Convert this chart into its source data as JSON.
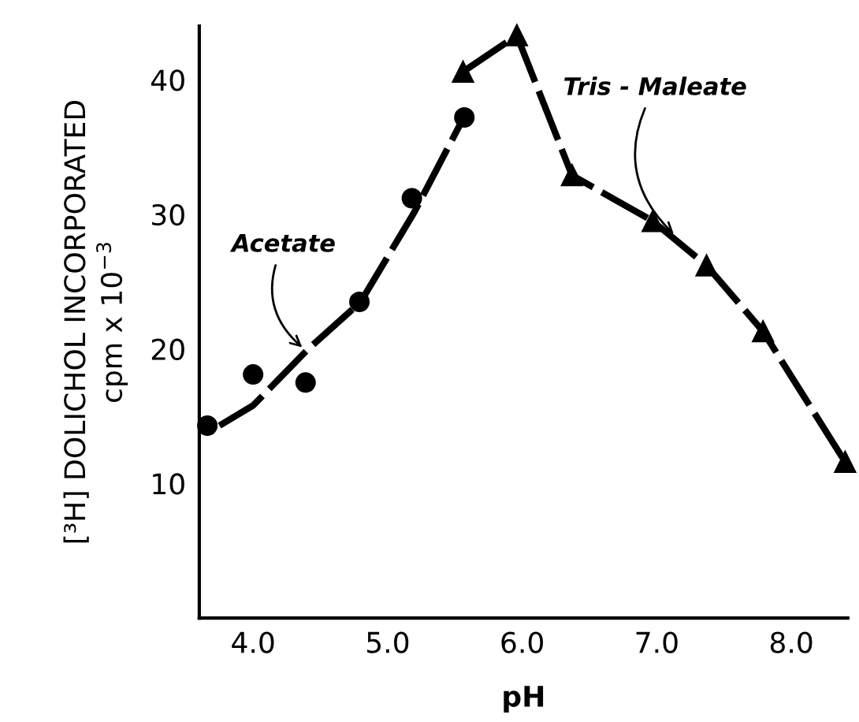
{
  "chart_data": {
    "type": "scatter",
    "xlabel": "pH",
    "ylabel": "[³H] DOLICHOL INCORPORATED\ncpm x 10$^{−3}$",
    "xlim": [
      3.6,
      8.42
    ],
    "ylim": [
      0,
      44
    ],
    "xticks": [
      {
        "value": 4,
        "label": "4.0"
      },
      {
        "value": 5,
        "label": "5.0"
      },
      {
        "value": 6,
        "label": "6.0"
      },
      {
        "value": 7,
        "label": "7.0"
      },
      {
        "value": 8,
        "label": "8.0"
      }
    ],
    "yticks": [
      10,
      20,
      30,
      40
    ],
    "grid": false,
    "legend": false,
    "series": [
      {
        "marker": "circle",
        "color": "#000000",
        "x": [
          3.66,
          4.0,
          4.39,
          4.79,
          5.18,
          5.57
        ],
        "values": [
          14.3,
          18.1,
          17.5,
          23.5,
          31.2,
          37.2
        ]
      },
      {
        "type": "line",
        "marker": "none",
        "line_style": "dashed",
        "color": "#000000",
        "x": [
          3.75,
          4.0,
          4.4,
          4.8,
          5.2,
          5.56
        ],
        "values": [
          14.3,
          15.8,
          19.9,
          23.5,
          30.2,
          37.1
        ]
      },
      {
        "type": "line",
        "marker": "triangle",
        "line_style": "dashed",
        "color": "#000000",
        "x": [
          5.56,
          5.96,
          6.37,
          6.97,
          7.37,
          7.79,
          8.4
        ],
        "values": [
          40.6,
          43.3,
          32.9,
          29.5,
          26.2,
          21.3,
          11.6
        ]
      }
    ],
    "annotations": [
      {
        "text": "Acetate",
        "x": 4.39,
        "y": 19.9
      },
      {
        "text": "Tris - Maleate",
        "x": 7.15,
        "y": 28.3
      }
    ]
  }
}
